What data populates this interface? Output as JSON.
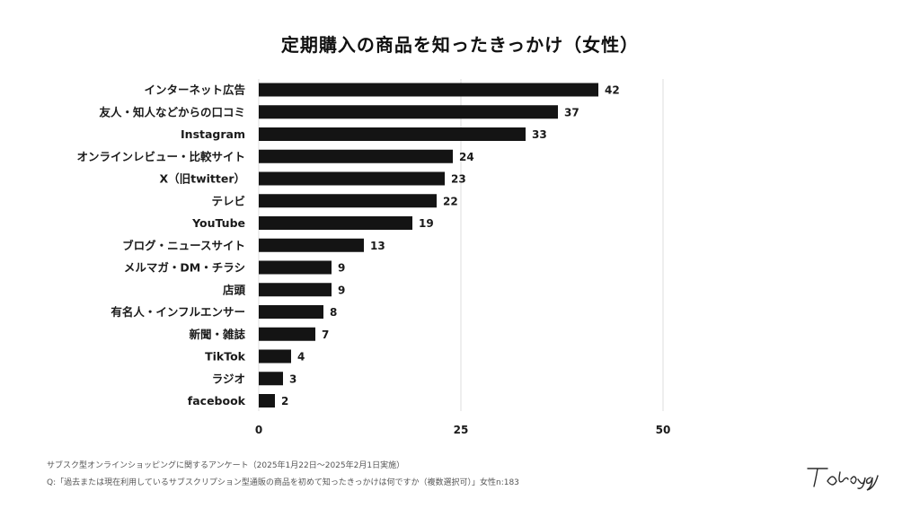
{
  "chart_data": {
    "type": "bar",
    "orientation": "horizontal",
    "title": "定期購入の商品を知ったきっかけ（女性）",
    "categories": [
      "インターネット広告",
      "友人・知人などからの口コミ",
      "Instagram",
      "オンラインレビュー・比較サイト",
      "X（旧twitter）",
      "テレビ",
      "YouTube",
      "ブログ・ニュースサイト",
      "メルマガ・DM・チラシ",
      "店頭",
      "有名人・インフルエンサー",
      "新聞・雑誌",
      "TikTok",
      "ラジオ",
      "facebook"
    ],
    "values": [
      42,
      37,
      33,
      24,
      23,
      22,
      19,
      13,
      9,
      9,
      8,
      7,
      4,
      3,
      2
    ],
    "xlim": [
      0,
      50
    ],
    "xticks": [
      0,
      25,
      50
    ],
    "xlabel": "",
    "ylabel": "",
    "grid": true,
    "legend": null,
    "bar_color": "#141414",
    "grid_color": "#dddddd"
  },
  "notes": {
    "survey": "サブスク型オンラインショッピングに関するアンケート（2025年1月22日〜2025年2月1日実施）",
    "question": "Q:「過去または現在利用しているサブスクリプション型通販の商品を初めて知ったきっかけは何ですか（複数選択可）」女性n:183"
  },
  "brand": {
    "logo_text": "Tokyo gate"
  }
}
